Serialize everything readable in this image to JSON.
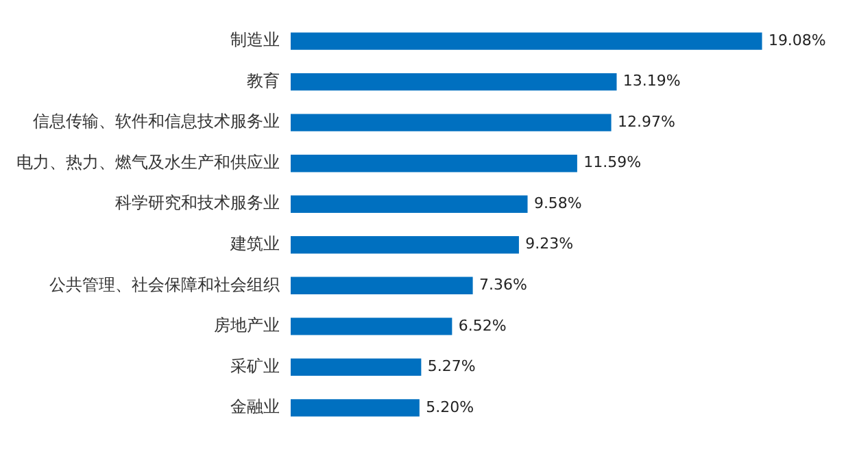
{
  "chart_data": {
    "type": "bar",
    "orientation": "horizontal",
    "grid": false,
    "color": "#0070c0",
    "categories": [
      "制造业",
      "教育",
      "信息传输、软件和信息技术服务业",
      "电力、热力、燃气及水生产和供应业",
      "科学研究和技术服务业",
      "建筑业",
      "公共管理、社会保障和社会组织",
      "房地产业",
      "采矿业",
      "金融业"
    ],
    "values": [
      19.08,
      13.19,
      12.97,
      11.59,
      9.58,
      9.23,
      7.36,
      6.52,
      5.27,
      5.2
    ],
    "value_labels": [
      "19.08%",
      "13.19%",
      "12.97%",
      "11.59%",
      "9.58%",
      "9.23%",
      "7.36%",
      "6.52%",
      "5.27%",
      "5.20%"
    ]
  }
}
